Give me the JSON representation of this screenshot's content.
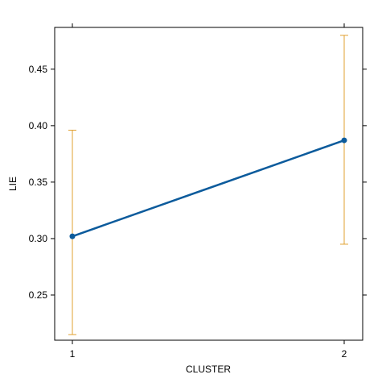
{
  "chart_data": {
    "type": "line",
    "title": "",
    "xlabel": "CLUSTER",
    "ylabel": "LIE",
    "categories": [
      "1",
      "2"
    ],
    "series": [
      {
        "values": [
          0.302,
          0.387
        ],
        "lower": [
          0.215,
          0.295
        ],
        "upper": [
          0.396,
          0.48
        ],
        "line_color": "#0c5b9c",
        "error_color": "#e0a030"
      }
    ],
    "y_ticks": [
      0.25,
      0.3,
      0.35,
      0.4,
      0.45
    ],
    "y_tick_labels": [
      "0.25",
      "0.30",
      "0.35",
      "0.40",
      "0.45"
    ],
    "ylim": [
      0.21,
      0.487
    ],
    "grid": false,
    "legend": "none"
  }
}
